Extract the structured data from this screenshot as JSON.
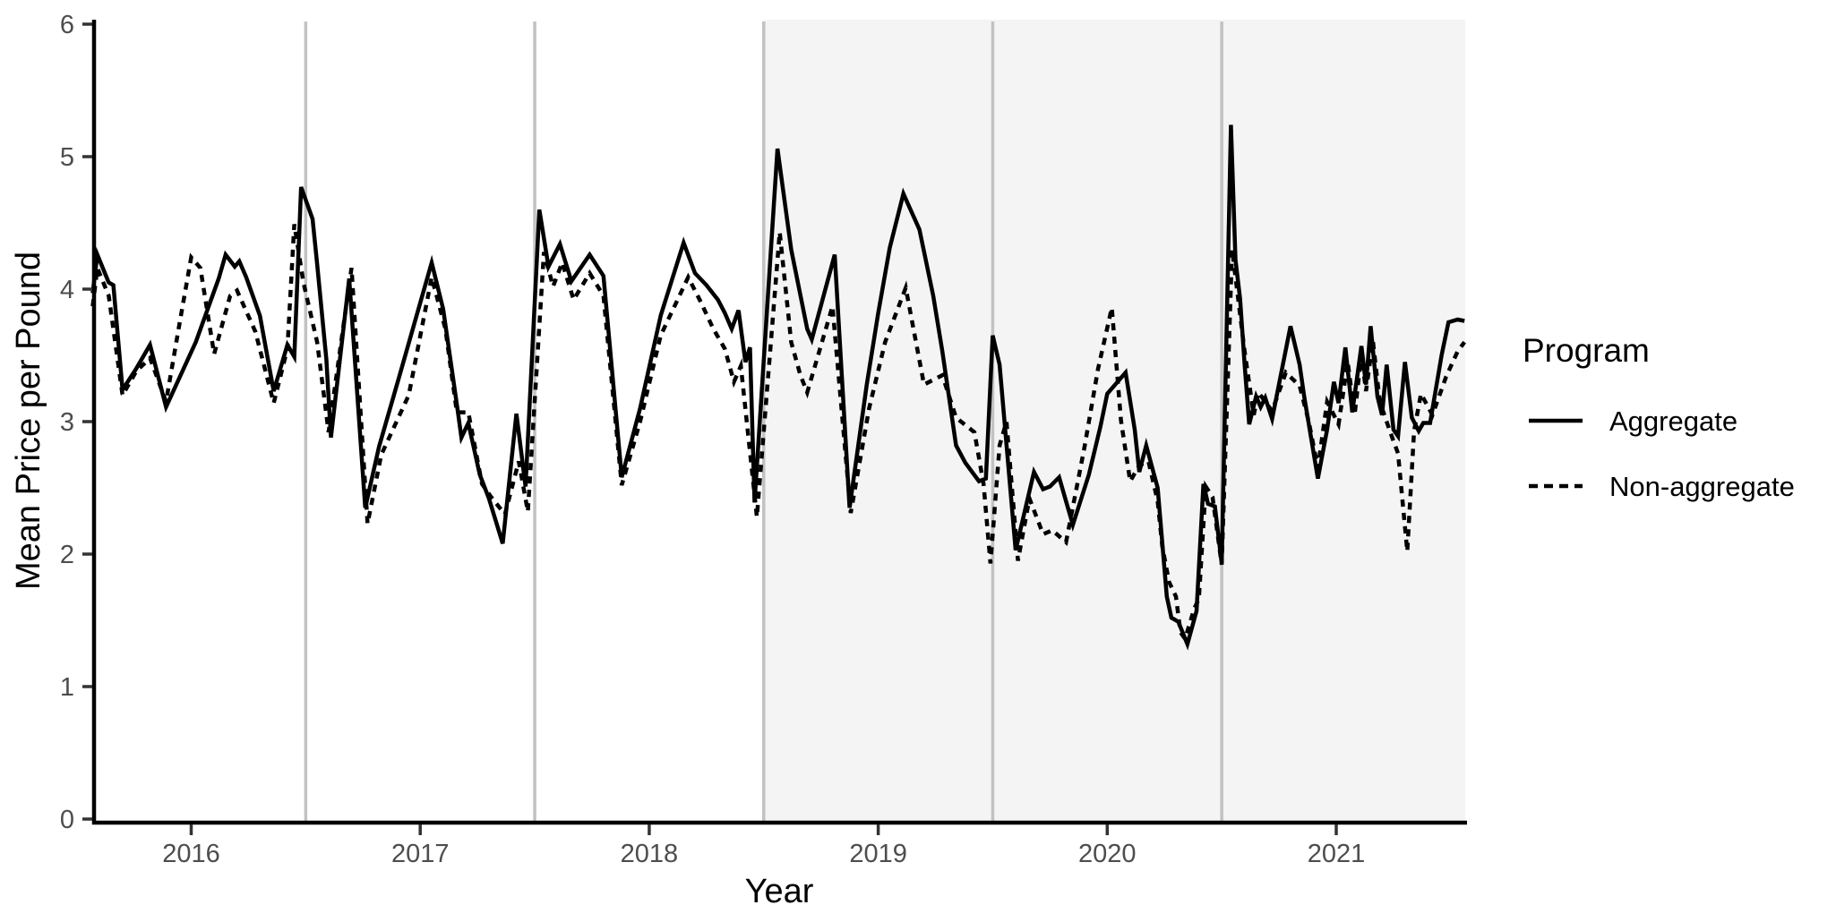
{
  "chart_data": {
    "type": "line",
    "title": "",
    "xlabel": "Year",
    "ylabel": "Mean Price per Pound",
    "xlim": [
      2015.57,
      2021.56
    ],
    "ylim": [
      0,
      6
    ],
    "x_ticks": [
      2016,
      2017,
      2018,
      2019,
      2020,
      2021
    ],
    "x_tick_labels": [
      "2016",
      "2017",
      "2018",
      "2019",
      "2020",
      "2021"
    ],
    "y_ticks": [
      0,
      1,
      2,
      3,
      4,
      5,
      6
    ],
    "y_tick_labels": [
      "0",
      "1",
      "2",
      "3",
      "4",
      "5",
      "6"
    ],
    "grid": "vertical gray lines at mid-year boundaries only",
    "gridline_years": [
      2016.5,
      2017.5,
      2018.5,
      2019.5,
      2020.5
    ],
    "shaded_region": {
      "x_start": 2018.5,
      "x_end": 2021.56,
      "color": "#f4f4f4"
    },
    "legend": {
      "title": "Program",
      "position": "right",
      "entries": [
        {
          "label": "Aggregate",
          "style": "solid"
        },
        {
          "label": "Non-aggregate",
          "style": "dashed"
        }
      ]
    },
    "series": [
      {
        "name": "Aggregate",
        "style": "solid",
        "color": "#000000",
        "points": [
          [
            2015.57,
            3.97
          ],
          [
            2015.59,
            4.26
          ],
          [
            2015.64,
            4.05
          ],
          [
            2015.66,
            4.03
          ],
          [
            2015.7,
            3.24
          ],
          [
            2015.76,
            3.4
          ],
          [
            2015.82,
            3.58
          ],
          [
            2015.89,
            3.11
          ],
          [
            2016.02,
            3.6
          ],
          [
            2016.12,
            4.08
          ],
          [
            2016.15,
            4.26
          ],
          [
            2016.19,
            4.17
          ],
          [
            2016.21,
            4.21
          ],
          [
            2016.24,
            4.09
          ],
          [
            2016.3,
            3.8
          ],
          [
            2016.36,
            3.23
          ],
          [
            2016.42,
            3.58
          ],
          [
            2016.45,
            3.49
          ],
          [
            2016.48,
            4.77
          ],
          [
            2016.53,
            4.53
          ],
          [
            2016.55,
            4.19
          ],
          [
            2016.59,
            3.47
          ],
          [
            2016.61,
            2.88
          ],
          [
            2016.69,
            4.08
          ],
          [
            2016.76,
            2.35
          ],
          [
            2016.82,
            2.81
          ],
          [
            2016.91,
            3.35
          ],
          [
            2017.05,
            4.2
          ],
          [
            2017.1,
            3.85
          ],
          [
            2017.16,
            3.13
          ],
          [
            2017.18,
            2.88
          ],
          [
            2017.21,
            2.99
          ],
          [
            2017.26,
            2.6
          ],
          [
            2017.3,
            2.42
          ],
          [
            2017.36,
            2.08
          ],
          [
            2017.42,
            3.06
          ],
          [
            2017.46,
            2.51
          ],
          [
            2017.52,
            4.6
          ],
          [
            2017.56,
            4.17
          ],
          [
            2017.61,
            4.34
          ],
          [
            2017.66,
            4.06
          ],
          [
            2017.74,
            4.26
          ],
          [
            2017.8,
            4.1
          ],
          [
            2017.88,
            2.58
          ],
          [
            2017.96,
            3.1
          ],
          [
            2018.05,
            3.8
          ],
          [
            2018.15,
            4.35
          ],
          [
            2018.2,
            4.12
          ],
          [
            2018.25,
            4.03
          ],
          [
            2018.3,
            3.92
          ],
          [
            2018.33,
            3.82
          ],
          [
            2018.36,
            3.7
          ],
          [
            2018.39,
            3.84
          ],
          [
            2018.42,
            3.45
          ],
          [
            2018.44,
            3.56
          ],
          [
            2018.46,
            2.39
          ],
          [
            2018.56,
            5.06
          ],
          [
            2018.62,
            4.3
          ],
          [
            2018.69,
            3.7
          ],
          [
            2018.71,
            3.62
          ],
          [
            2018.81,
            4.26
          ],
          [
            2018.875,
            2.35
          ],
          [
            2018.95,
            3.28
          ],
          [
            2019.0,
            3.82
          ],
          [
            2019.05,
            4.31
          ],
          [
            2019.11,
            4.72
          ],
          [
            2019.18,
            4.45
          ],
          [
            2019.24,
            3.95
          ],
          [
            2019.28,
            3.53
          ],
          [
            2019.34,
            2.82
          ],
          [
            2019.38,
            2.69
          ],
          [
            2019.44,
            2.55
          ],
          [
            2019.47,
            2.57
          ],
          [
            2019.5,
            3.65
          ],
          [
            2019.53,
            3.43
          ],
          [
            2019.6,
            2.03
          ],
          [
            2019.68,
            2.62
          ],
          [
            2019.72,
            2.49
          ],
          [
            2019.75,
            2.51
          ],
          [
            2019.79,
            2.58
          ],
          [
            2019.85,
            2.22
          ],
          [
            2019.92,
            2.6
          ],
          [
            2019.97,
            2.96
          ],
          [
            2020.0,
            3.21
          ],
          [
            2020.08,
            3.37
          ],
          [
            2020.12,
            2.94
          ],
          [
            2020.14,
            2.62
          ],
          [
            2020.17,
            2.82
          ],
          [
            2020.22,
            2.5
          ],
          [
            2020.26,
            1.68
          ],
          [
            2020.28,
            1.52
          ],
          [
            2020.31,
            1.49
          ],
          [
            2020.35,
            1.32
          ],
          [
            2020.39,
            1.57
          ],
          [
            2020.42,
            2.53
          ],
          [
            2020.44,
            2.38
          ],
          [
            2020.47,
            2.36
          ],
          [
            2020.5,
            1.93
          ],
          [
            2020.54,
            5.24
          ],
          [
            2020.56,
            4.22
          ],
          [
            2020.58,
            3.93
          ],
          [
            2020.6,
            3.43
          ],
          [
            2020.62,
            2.98
          ],
          [
            2020.65,
            3.19
          ],
          [
            2020.67,
            3.11
          ],
          [
            2020.69,
            3.18
          ],
          [
            2020.72,
            3.02
          ],
          [
            2020.8,
            3.72
          ],
          [
            2020.84,
            3.43
          ],
          [
            2020.86,
            3.19
          ],
          [
            2020.92,
            2.57
          ],
          [
            2020.96,
            2.94
          ],
          [
            2020.99,
            3.3
          ],
          [
            2021.01,
            3.14
          ],
          [
            2021.04,
            3.56
          ],
          [
            2021.07,
            3.07
          ],
          [
            2021.11,
            3.57
          ],
          [
            2021.13,
            3.28
          ],
          [
            2021.15,
            3.72
          ],
          [
            2021.18,
            3.19
          ],
          [
            2021.2,
            3.05
          ],
          [
            2021.22,
            3.43
          ],
          [
            2021.25,
            2.94
          ],
          [
            2021.27,
            2.89
          ],
          [
            2021.3,
            3.45
          ],
          [
            2021.33,
            3.03
          ],
          [
            2021.36,
            2.93
          ],
          [
            2021.38,
            2.99
          ],
          [
            2021.41,
            2.99
          ],
          [
            2021.46,
            3.5
          ],
          [
            2021.49,
            3.75
          ],
          [
            2021.53,
            3.77
          ],
          [
            2021.56,
            3.76
          ]
        ]
      },
      {
        "name": "Non-aggregate",
        "style": "dashed",
        "color": "#000000",
        "points": [
          [
            2015.57,
            3.87
          ],
          [
            2015.59,
            4.16
          ],
          [
            2015.64,
            3.95
          ],
          [
            2015.7,
            3.2
          ],
          [
            2015.76,
            3.38
          ],
          [
            2015.82,
            3.48
          ],
          [
            2015.89,
            3.15
          ],
          [
            2015.95,
            3.75
          ],
          [
            2016.0,
            4.24
          ],
          [
            2016.04,
            4.16
          ],
          [
            2016.1,
            3.51
          ],
          [
            2016.17,
            3.95
          ],
          [
            2016.2,
            3.99
          ],
          [
            2016.28,
            3.68
          ],
          [
            2016.36,
            3.14
          ],
          [
            2016.42,
            3.55
          ],
          [
            2016.45,
            4.49
          ],
          [
            2016.49,
            4.05
          ],
          [
            2016.55,
            3.6
          ],
          [
            2016.6,
            2.92
          ],
          [
            2016.7,
            4.16
          ],
          [
            2016.77,
            2.23
          ],
          [
            2016.83,
            2.75
          ],
          [
            2016.95,
            3.2
          ],
          [
            2017.05,
            4.09
          ],
          [
            2017.11,
            3.7
          ],
          [
            2017.16,
            3.07
          ],
          [
            2017.21,
            3.07
          ],
          [
            2017.27,
            2.53
          ],
          [
            2017.31,
            2.43
          ],
          [
            2017.37,
            2.3
          ],
          [
            2017.43,
            2.7
          ],
          [
            2017.47,
            2.32
          ],
          [
            2017.54,
            4.28
          ],
          [
            2017.58,
            4.02
          ],
          [
            2017.62,
            4.2
          ],
          [
            2017.67,
            3.92
          ],
          [
            2017.74,
            4.12
          ],
          [
            2017.8,
            3.95
          ],
          [
            2017.88,
            2.52
          ],
          [
            2017.96,
            3.0
          ],
          [
            2018.05,
            3.65
          ],
          [
            2018.17,
            4.09
          ],
          [
            2018.22,
            3.92
          ],
          [
            2018.28,
            3.7
          ],
          [
            2018.33,
            3.55
          ],
          [
            2018.37,
            3.3
          ],
          [
            2018.4,
            3.42
          ],
          [
            2018.47,
            2.28
          ],
          [
            2018.57,
            4.43
          ],
          [
            2018.62,
            3.6
          ],
          [
            2018.66,
            3.35
          ],
          [
            2018.69,
            3.22
          ],
          [
            2018.8,
            3.87
          ],
          [
            2018.88,
            2.31
          ],
          [
            2018.96,
            3.1
          ],
          [
            2019.03,
            3.6
          ],
          [
            2019.12,
            4.01
          ],
          [
            2019.2,
            3.28
          ],
          [
            2019.28,
            3.35
          ],
          [
            2019.34,
            3.03
          ],
          [
            2019.42,
            2.92
          ],
          [
            2019.46,
            2.53
          ],
          [
            2019.49,
            1.93
          ],
          [
            2019.53,
            2.82
          ],
          [
            2019.56,
            3.0
          ],
          [
            2019.61,
            1.95
          ],
          [
            2019.66,
            2.42
          ],
          [
            2019.72,
            2.15
          ],
          [
            2019.76,
            2.18
          ],
          [
            2019.82,
            2.09
          ],
          [
            2019.9,
            2.8
          ],
          [
            2019.96,
            3.4
          ],
          [
            2020.02,
            3.86
          ],
          [
            2020.06,
            3.01
          ],
          [
            2020.1,
            2.55
          ],
          [
            2020.14,
            2.67
          ],
          [
            2020.18,
            2.7
          ],
          [
            2020.22,
            2.4
          ],
          [
            2020.24,
            2.06
          ],
          [
            2020.27,
            1.79
          ],
          [
            2020.3,
            1.68
          ],
          [
            2020.32,
            1.41
          ],
          [
            2020.34,
            1.36
          ],
          [
            2020.38,
            1.59
          ],
          [
            2020.4,
            1.66
          ],
          [
            2020.43,
            2.51
          ],
          [
            2020.46,
            2.43
          ],
          [
            2020.5,
            1.92
          ],
          [
            2020.545,
            4.3
          ],
          [
            2020.6,
            3.53
          ],
          [
            2020.64,
            3.05
          ],
          [
            2020.66,
            3.22
          ],
          [
            2020.72,
            3.08
          ],
          [
            2020.78,
            3.37
          ],
          [
            2020.84,
            3.27
          ],
          [
            2020.88,
            3.0
          ],
          [
            2020.92,
            2.65
          ],
          [
            2020.96,
            3.15
          ],
          [
            2021.01,
            2.98
          ],
          [
            2021.05,
            3.45
          ],
          [
            2021.08,
            3.05
          ],
          [
            2021.11,
            3.51
          ],
          [
            2021.13,
            3.23
          ],
          [
            2021.16,
            3.61
          ],
          [
            2021.19,
            3.15
          ],
          [
            2021.24,
            2.9
          ],
          [
            2021.27,
            2.76
          ],
          [
            2021.31,
            2.02
          ],
          [
            2021.34,
            2.93
          ],
          [
            2021.37,
            3.21
          ],
          [
            2021.42,
            3.05
          ],
          [
            2021.48,
            3.34
          ],
          [
            2021.53,
            3.53
          ],
          [
            2021.56,
            3.6
          ]
        ]
      }
    ]
  },
  "colors": {
    "background": "#ffffff",
    "shade": "#f4f4f4",
    "gridline": "#c2c2c2",
    "axis": "#000000",
    "tick": "#333333",
    "tick_label": "#4d4d4d",
    "line": "#000000"
  }
}
